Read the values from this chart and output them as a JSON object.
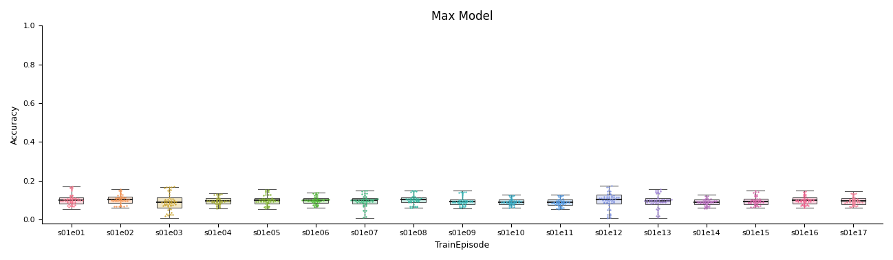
{
  "title": "Max Model",
  "xlabel": "TrainEpisode",
  "ylabel": "Accuracy",
  "ylim": [
    -0.02,
    1.0
  ],
  "yticks": [
    0.0,
    0.2,
    0.4,
    0.6,
    0.8,
    1.0
  ],
  "categories": [
    "s01e01",
    "s01e02",
    "s01e03",
    "s01e04",
    "s01e05",
    "s01e06",
    "s01e07",
    "s01e08",
    "s01e09",
    "s01e10",
    "s01e11",
    "s01e12",
    "s01e13",
    "s01e14",
    "s01e15",
    "s01e16",
    "s01e17"
  ],
  "palette": [
    "#f77189",
    "#f5914e",
    "#c9a227",
    "#a4a832",
    "#7db22b",
    "#4db830",
    "#36b677",
    "#35b8a0",
    "#34b6b6",
    "#32a9c3",
    "#5199e4",
    "#7b8fe0",
    "#9b7fd4",
    "#b96bbf",
    "#d962a6",
    "#f0608e",
    "#f08098"
  ],
  "box_stats": [
    {
      "med": 0.1,
      "q1": 0.082,
      "q3": 0.115,
      "whislo": 0.052,
      "whishi": 0.17
    },
    {
      "med": 0.102,
      "q1": 0.085,
      "q3": 0.118,
      "whislo": 0.06,
      "whishi": 0.155
    },
    {
      "med": 0.088,
      "q1": 0.062,
      "q3": 0.115,
      "whislo": 0.008,
      "whishi": 0.168
    },
    {
      "med": 0.095,
      "q1": 0.082,
      "q3": 0.11,
      "whislo": 0.058,
      "whishi": 0.135
    },
    {
      "med": 0.098,
      "q1": 0.082,
      "q3": 0.112,
      "whislo": 0.055,
      "whishi": 0.155
    },
    {
      "med": 0.1,
      "q1": 0.086,
      "q3": 0.112,
      "whislo": 0.062,
      "whishi": 0.14
    },
    {
      "med": 0.098,
      "q1": 0.082,
      "q3": 0.112,
      "whislo": 0.008,
      "whishi": 0.15
    },
    {
      "med": 0.102,
      "q1": 0.088,
      "q3": 0.115,
      "whislo": 0.06,
      "whishi": 0.15
    },
    {
      "med": 0.092,
      "q1": 0.08,
      "q3": 0.105,
      "whislo": 0.058,
      "whishi": 0.148
    },
    {
      "med": 0.09,
      "q1": 0.08,
      "q3": 0.102,
      "whislo": 0.062,
      "whishi": 0.128
    },
    {
      "med": 0.088,
      "q1": 0.075,
      "q3": 0.102,
      "whislo": 0.055,
      "whishi": 0.128
    },
    {
      "med": 0.105,
      "q1": 0.082,
      "q3": 0.128,
      "whislo": 0.008,
      "whishi": 0.175
    },
    {
      "med": 0.095,
      "q1": 0.08,
      "q3": 0.112,
      "whislo": 0.008,
      "whishi": 0.158
    },
    {
      "med": 0.09,
      "q1": 0.078,
      "q3": 0.105,
      "whislo": 0.062,
      "whishi": 0.128
    },
    {
      "med": 0.092,
      "q1": 0.078,
      "q3": 0.108,
      "whislo": 0.062,
      "whishi": 0.148
    },
    {
      "med": 0.098,
      "q1": 0.082,
      "q3": 0.115,
      "whislo": 0.062,
      "whishi": 0.148
    },
    {
      "med": 0.095,
      "q1": 0.08,
      "q3": 0.11,
      "whislo": 0.062,
      "whishi": 0.145
    }
  ],
  "seed": 0
}
